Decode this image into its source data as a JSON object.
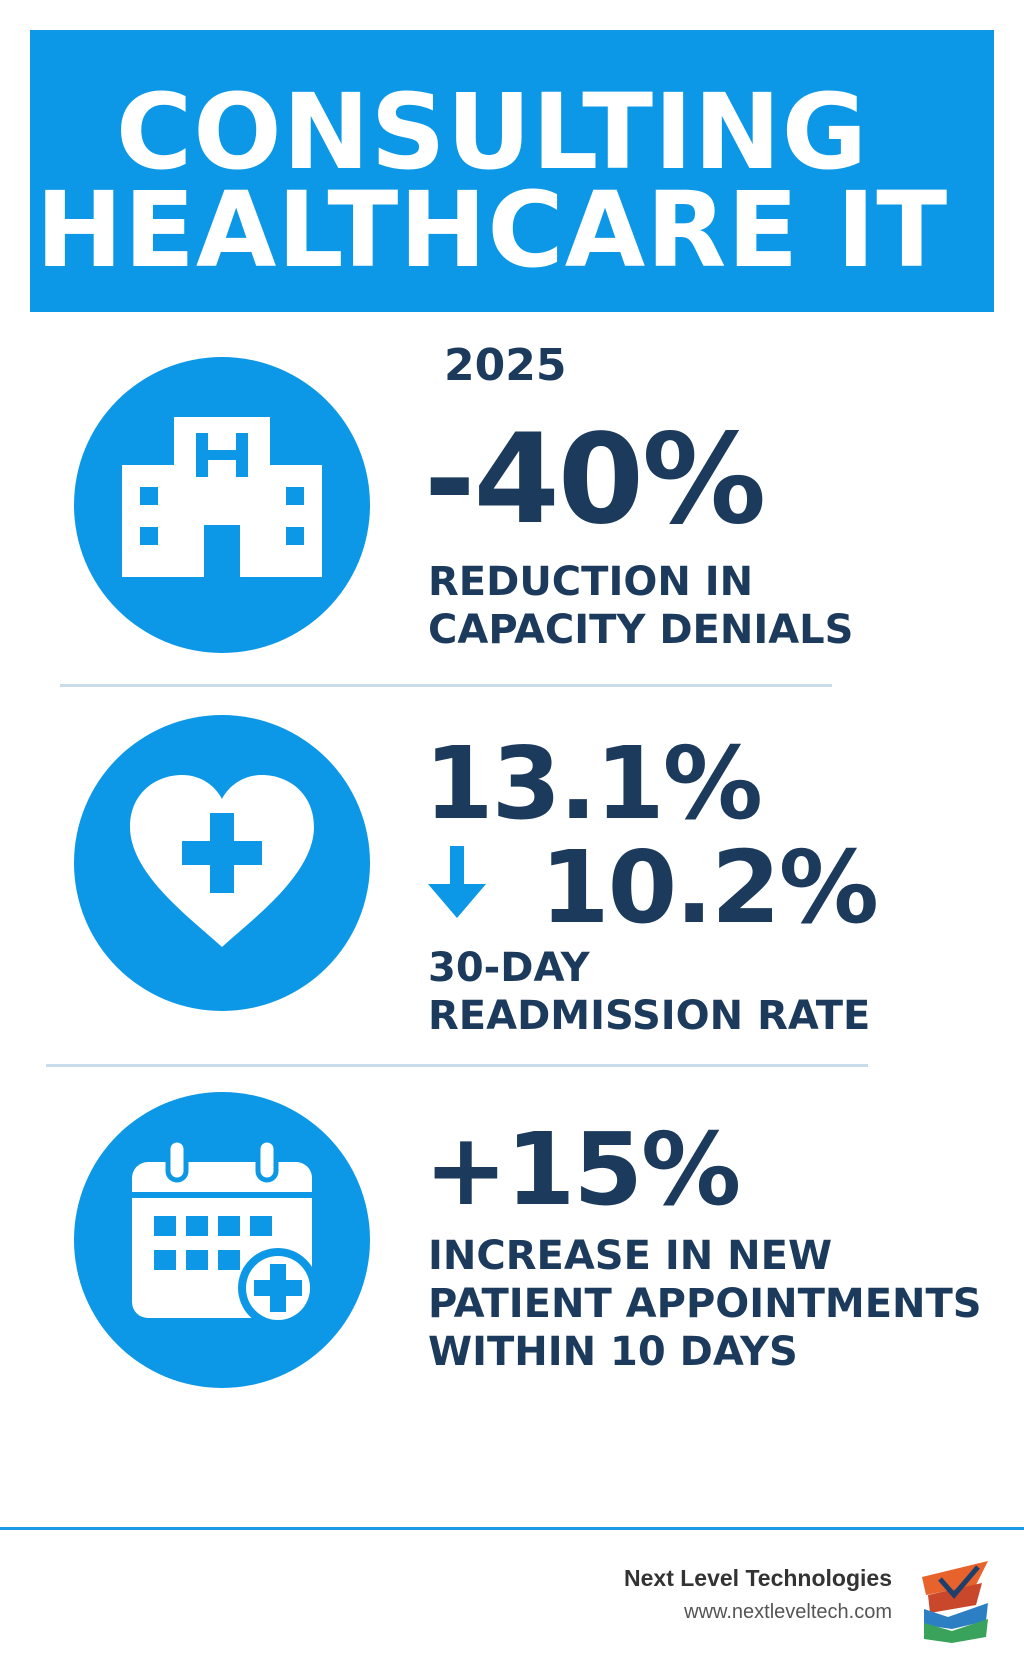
{
  "header": {
    "title_line1": "CONSULTING",
    "title_line2": "HEALTHCARE IT",
    "background_color": "#0d98e7"
  },
  "year": "2025",
  "stats": [
    {
      "icon": "hospital-icon",
      "value": "-40%",
      "label_line1": "REDUCTION IN",
      "label_line2": "CAPACITY DENIALS"
    },
    {
      "icon": "heart-plus-icon",
      "value_from": "13.1%",
      "value_to": "10.2%",
      "arrow_icon": "arrow-down-icon",
      "label_line1": "30-DAY",
      "label_line2": "READMISSION RATE"
    },
    {
      "icon": "calendar-plus-icon",
      "value": "+15%",
      "label_line1": "INCREASE IN NEW",
      "label_line2": "PATIENT APPOINTMENTS",
      "label_line3": "WITHIN 10 DAYS"
    }
  ],
  "footer": {
    "company": "Next Level Technologies",
    "website": "www.nextleveltech.com",
    "logo_icon": "next-level-logo-icon"
  },
  "colors": {
    "accent": "#0d98e7",
    "text": "#1b3a5c",
    "divider": "#c8dde9"
  }
}
